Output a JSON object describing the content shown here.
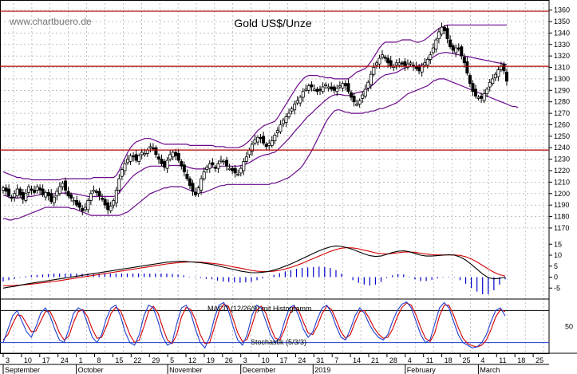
{
  "watermark": "www.chartbuero.de",
  "colors": {
    "candle": "#000000",
    "bollinger": "#6a0a8a",
    "resistance": "#b00000",
    "macd_line": "#000000",
    "macd_signal": "#d40000",
    "histogram": "#0000cc",
    "stoch_k": "#1f3fd0",
    "stoch_d": "#d40000",
    "grid": "#999999"
  },
  "chart_data": [
    {
      "type": "candlestick",
      "title": "Gold US$/Unze",
      "y_ticks": [
        1170,
        1180,
        1190,
        1200,
        1210,
        1220,
        1230,
        1240,
        1250,
        1260,
        1270,
        1280,
        1290,
        1300,
        1310,
        1320,
        1330,
        1340,
        1350,
        1360
      ],
      "ylim": [
        1163,
        1366
      ],
      "x_ticks": [
        "3",
        "10",
        "17",
        "24",
        "1",
        "8",
        "15",
        "22",
        "29",
        "5",
        "12",
        "19",
        "26",
        "3",
        "10",
        "17",
        "24",
        "31",
        "7",
        "14",
        "21",
        "28",
        "4",
        "11",
        "18",
        "25",
        "4",
        "11",
        "18",
        "25"
      ],
      "month_labels": [
        {
          "label": "September",
          "at": 0
        },
        {
          "label": "October",
          "at": 4
        },
        {
          "label": "November",
          "at": 9
        },
        {
          "label": "December",
          "at": 13
        },
        {
          "label": "2019",
          "at": 17
        },
        {
          "label": "February",
          "at": 22
        },
        {
          "label": "March",
          "at": 26
        }
      ],
      "horizontal_lines": [
        1359,
        1311,
        1238
      ],
      "closes": [
        1205,
        1202,
        1198,
        1196,
        1200,
        1204,
        1199,
        1195,
        1200,
        1206,
        1203,
        1201,
        1206,
        1203,
        1199,
        1201,
        1198,
        1193,
        1197,
        1202,
        1206,
        1209,
        1203,
        1198,
        1196,
        1194,
        1190,
        1188,
        1185,
        1188,
        1194,
        1200,
        1203,
        1201,
        1198,
        1195,
        1190,
        1186,
        1189,
        1194,
        1203,
        1213,
        1221,
        1226,
        1230,
        1233,
        1232,
        1229,
        1233,
        1236,
        1235,
        1238,
        1241,
        1239,
        1234,
        1230,
        1226,
        1223,
        1229,
        1234,
        1236,
        1233,
        1229,
        1224,
        1219,
        1213,
        1207,
        1202,
        1199,
        1205,
        1213,
        1219,
        1223,
        1226,
        1225,
        1222,
        1226,
        1229,
        1228,
        1224,
        1222,
        1220,
        1218,
        1217,
        1222,
        1228,
        1232,
        1238,
        1243,
        1247,
        1249,
        1248,
        1244,
        1241,
        1244,
        1246,
        1251,
        1255,
        1260,
        1264,
        1267,
        1270,
        1274,
        1278,
        1281,
        1284,
        1289,
        1291,
        1294,
        1293,
        1291,
        1289,
        1290,
        1293,
        1295,
        1293,
        1291,
        1290,
        1292,
        1294,
        1296,
        1294,
        1289,
        1284,
        1280,
        1278,
        1281,
        1286,
        1291,
        1297,
        1304,
        1310,
        1314,
        1318,
        1321,
        1318,
        1314,
        1311,
        1311,
        1314,
        1314,
        1313,
        1311,
        1313,
        1314,
        1311,
        1309,
        1307,
        1311,
        1314,
        1317,
        1321,
        1327,
        1334,
        1341,
        1345,
        1342,
        1335,
        1328,
        1325,
        1327,
        1326,
        1320,
        1314,
        1305,
        1296,
        1289,
        1285,
        1284,
        1283,
        1287,
        1291,
        1297,
        1300,
        1304,
        1308,
        1311,
        1307,
        1298
      ],
      "bollinger_upper": [
        1219,
        1218,
        1217,
        1216,
        1215,
        1214,
        1214,
        1213,
        1213,
        1213,
        1212,
        1212,
        1212,
        1212,
        1212,
        1212,
        1212,
        1212,
        1212,
        1212,
        1212,
        1213,
        1213,
        1213,
        1213,
        1213,
        1213,
        1213,
        1213,
        1213,
        1213,
        1213,
        1214,
        1214,
        1214,
        1214,
        1214,
        1214,
        1214,
        1214,
        1216,
        1220,
        1226,
        1231,
        1236,
        1240,
        1243,
        1245,
        1246,
        1247,
        1248,
        1248,
        1248,
        1247,
        1246,
        1245,
        1244,
        1243,
        1243,
        1243,
        1243,
        1243,
        1243,
        1243,
        1243,
        1243,
        1242,
        1242,
        1242,
        1242,
        1242,
        1242,
        1242,
        1242,
        1242,
        1241,
        1241,
        1241,
        1241,
        1240,
        1240,
        1240,
        1240,
        1240,
        1241,
        1242,
        1244,
        1246,
        1249,
        1252,
        1255,
        1257,
        1259,
        1260,
        1261,
        1262,
        1263,
        1266,
        1270,
        1274,
        1278,
        1282,
        1286,
        1290,
        1294,
        1297,
        1300,
        1302,
        1303,
        1303,
        1303,
        1303,
        1302,
        1302,
        1301,
        1301,
        1301,
        1300,
        1300,
        1300,
        1300,
        1300,
        1300,
        1302,
        1304,
        1306,
        1307,
        1308,
        1309,
        1312,
        1315,
        1319,
        1323,
        1327,
        1330,
        1332,
        1332,
        1332,
        1332,
        1332,
        1333,
        1334,
        1334,
        1334,
        1334,
        1333,
        1332,
        1332,
        1333,
        1334,
        1336,
        1338,
        1340,
        1342,
        1344,
        1345,
        1346,
        1347,
        1347,
        1347,
        1347,
        1347,
        1347,
        1347,
        1347,
        1347,
        1347,
        1347,
        1347,
        1347,
        1347,
        1347,
        1347,
        1347,
        1347,
        1347,
        1347,
        1347,
        1347
      ],
      "bollinger_lower": [
        1178,
        1178,
        1177,
        1177,
        1178,
        1178,
        1179,
        1180,
        1181,
        1182,
        1183,
        1184,
        1185,
        1186,
        1187,
        1188,
        1188,
        1188,
        1188,
        1188,
        1188,
        1188,
        1188,
        1188,
        1187,
        1187,
        1186,
        1185,
        1184,
        1183,
        1182,
        1181,
        1181,
        1181,
        1181,
        1181,
        1181,
        1181,
        1181,
        1181,
        1181,
        1181,
        1182,
        1183,
        1184,
        1186,
        1188,
        1190,
        1192,
        1194,
        1196,
        1198,
        1200,
        1201,
        1202,
        1203,
        1204,
        1205,
        1205,
        1206,
        1206,
        1206,
        1206,
        1206,
        1205,
        1204,
        1203,
        1202,
        1201,
        1201,
        1201,
        1201,
        1202,
        1203,
        1204,
        1205,
        1206,
        1207,
        1207,
        1208,
        1208,
        1208,
        1208,
        1208,
        1208,
        1208,
        1208,
        1208,
        1208,
        1208,
        1208,
        1208,
        1208,
        1208,
        1208,
        1209,
        1209,
        1210,
        1211,
        1212,
        1213,
        1214,
        1216,
        1218,
        1220,
        1222,
        1225,
        1229,
        1233,
        1237,
        1242,
        1247,
        1252,
        1257,
        1262,
        1266,
        1269,
        1272,
        1273,
        1273,
        1272,
        1271,
        1271,
        1270,
        1270,
        1270,
        1270,
        1270,
        1271,
        1271,
        1272,
        1272,
        1273,
        1274,
        1274,
        1275,
        1276,
        1277,
        1278,
        1279,
        1281,
        1283,
        1285,
        1287,
        1288,
        1289,
        1290,
        1291,
        1292,
        1293,
        1294,
        1296,
        1298,
        1299,
        1300,
        1300,
        1300,
        1299,
        1298,
        1297,
        1296,
        1295,
        1294,
        1293,
        1292,
        1291,
        1290,
        1289,
        1288,
        1287,
        1286,
        1285,
        1284,
        1283,
        1282,
        1281,
        1280,
        1279,
        1278,
        1277,
        1276,
        1276,
        1275
      ]
    },
    {
      "type": "line",
      "label": "MACD (12/26/9) mit Histogramm",
      "y_ticks": [
        15,
        10,
        5,
        0,
        -5
      ],
      "ylim": [
        -10,
        18
      ],
      "macd": [
        -5.0,
        -4.6,
        -4.2,
        -3.7,
        -3.2,
        -2.8,
        -2.4,
        -2.0,
        -1.6,
        -1.2,
        -0.8,
        -0.4,
        0.0,
        0.4,
        0.8,
        1.2,
        1.6,
        2.0,
        2.4,
        2.8,
        3.2,
        3.6,
        4.0,
        4.4,
        4.8,
        5.2,
        5.6,
        6.0,
        6.4,
        6.8,
        7.0,
        7.2,
        7.2,
        7.0,
        6.8,
        6.6,
        6.2,
        5.8,
        5.2,
        4.6,
        4.0,
        3.4,
        2.8,
        2.4,
        2.0,
        2.0,
        2.2,
        2.6,
        3.2,
        4.0,
        5.0,
        6.0,
        7.2,
        8.4,
        9.6,
        10.8,
        12.0,
        13.0,
        13.8,
        14.2,
        14.0,
        13.4,
        12.6,
        11.6,
        10.6,
        9.8,
        9.4,
        9.6,
        10.4,
        11.2,
        11.8,
        12.0,
        11.6,
        10.8,
        10.0,
        9.6,
        9.6,
        9.8,
        10.0,
        10.2,
        10.0,
        9.2,
        7.8,
        5.8,
        3.6,
        1.4,
        -0.2,
        -0.8,
        -0.6,
        0.0
      ],
      "signal": [
        -4.0,
        -3.9,
        -3.8,
        -3.6,
        -3.4,
        -3.2,
        -2.9,
        -2.6,
        -2.3,
        -2.0,
        -1.6,
        -1.2,
        -0.8,
        -0.4,
        0.0,
        0.4,
        0.8,
        1.2,
        1.6,
        2.0,
        2.4,
        2.8,
        3.2,
        3.6,
        4.0,
        4.4,
        4.8,
        5.2,
        5.6,
        6.0,
        6.3,
        6.6,
        6.8,
        6.9,
        6.9,
        6.8,
        6.6,
        6.3,
        6.0,
        5.6,
        5.1,
        4.6,
        4.1,
        3.6,
        3.1,
        2.7,
        2.5,
        2.5,
        2.7,
        3.1,
        3.7,
        4.4,
        5.3,
        6.3,
        7.4,
        8.5,
        9.6,
        10.7,
        11.7,
        12.6,
        13.2,
        13.4,
        13.3,
        12.9,
        12.3,
        11.7,
        11.1,
        10.7,
        10.6,
        10.8,
        11.1,
        11.4,
        11.5,
        11.3,
        10.9,
        10.5,
        10.2,
        10.1,
        10.1,
        10.1,
        10.1,
        9.9,
        9.3,
        8.3,
        6.9,
        5.3,
        3.7,
        2.2,
        1.1,
        0.5
      ]
    },
    {
      "type": "line",
      "label": "Stochastik (5/3/3)",
      "y_ticks": [
        50
      ],
      "ylim": [
        0,
        100
      ],
      "k": [
        20,
        45,
        70,
        80,
        60,
        40,
        30,
        50,
        75,
        85,
        70,
        45,
        25,
        20,
        45,
        75,
        85,
        80,
        55,
        30,
        20,
        35,
        65,
        85,
        90,
        70,
        40,
        20,
        15,
        35,
        70,
        90,
        85,
        60,
        30,
        15,
        20,
        55,
        85,
        90,
        75,
        45,
        20,
        10,
        30,
        65,
        90,
        95,
        80,
        50,
        25,
        15,
        35,
        70,
        90,
        85,
        60,
        35,
        20,
        30,
        60,
        85,
        90,
        70,
        45,
        30,
        40,
        65,
        85,
        90,
        75,
        50,
        30,
        25,
        45,
        70,
        85,
        75,
        55,
        40,
        30,
        25,
        35,
        60,
        80,
        92,
        96,
        85,
        60,
        35,
        20,
        25,
        55,
        85,
        95,
        85,
        60,
        35,
        20,
        15,
        10,
        12,
        20,
        35,
        60,
        80,
        85,
        70
      ],
      "d": [
        25,
        35,
        55,
        72,
        70,
        55,
        40,
        42,
        60,
        78,
        78,
        60,
        38,
        25,
        32,
        58,
        78,
        82,
        68,
        45,
        28,
        30,
        50,
        75,
        86,
        80,
        58,
        35,
        20,
        25,
        50,
        78,
        88,
        75,
        48,
        25,
        18,
        35,
        68,
        86,
        82,
        62,
        35,
        18,
        20,
        48,
        78,
        92,
        88,
        65,
        38,
        22,
        26,
        52,
        80,
        88,
        75,
        48,
        28,
        25,
        45,
        72,
        88,
        80,
        58,
        38,
        35,
        52,
        75,
        88,
        82,
        62,
        40,
        28,
        35,
        58,
        78,
        80,
        66,
        48,
        36,
        28,
        30,
        45,
        68,
        86,
        94,
        90,
        72,
        48,
        28,
        22,
        38,
        70,
        90,
        90,
        72,
        48,
        28,
        18,
        14,
        12,
        15,
        25,
        45,
        68,
        82,
        78
      ]
    }
  ]
}
